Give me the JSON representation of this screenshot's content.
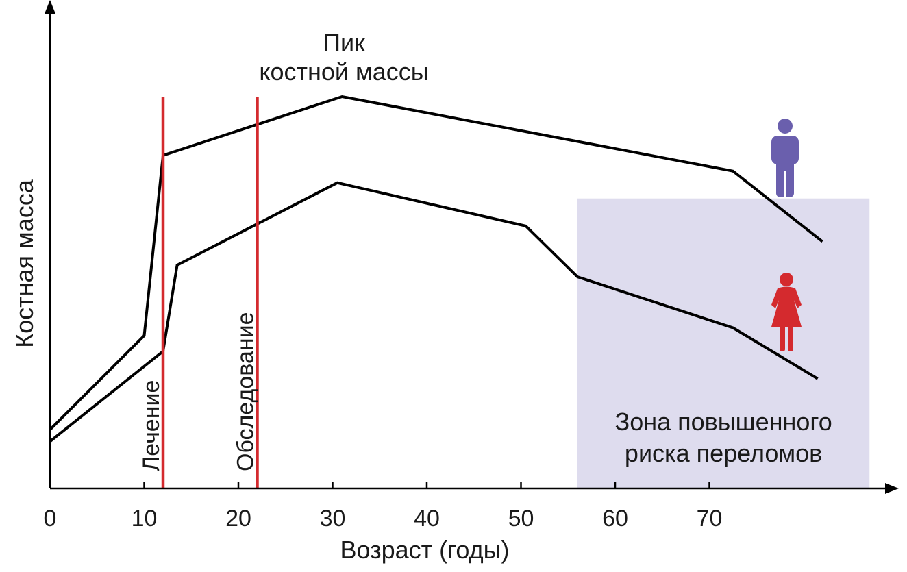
{
  "chart_data": {
    "type": "line",
    "xlabel": "Возраст (годы)",
    "ylabel": "Костная масса",
    "x_ticks": [
      0,
      10,
      20,
      30,
      40,
      50,
      60,
      70
    ],
    "xlim": [
      0,
      90
    ],
    "ylim": [
      0,
      10
    ],
    "series": [
      {
        "color": "#000000",
        "icon": "male-figure-icon",
        "icon_color": "#6a5fad",
        "points": [
          [
            0,
            1.5
          ],
          [
            10,
            3.9
          ],
          [
            12,
            8.5
          ],
          [
            31,
            10.0
          ],
          [
            72.5,
            8.1
          ],
          [
            82,
            6.3
          ]
        ]
      },
      {
        "color": "#000000",
        "icon": "female-figure-icon",
        "icon_color": "#d42a2e",
        "points": [
          [
            0,
            1.2
          ],
          [
            12,
            3.5
          ],
          [
            13.5,
            5.7
          ],
          [
            30.5,
            7.8
          ],
          [
            50.5,
            6.7
          ],
          [
            56,
            5.4
          ],
          [
            72.5,
            4.1
          ],
          [
            81.5,
            2.8
          ]
        ]
      }
    ],
    "vertical_markers": [
      {
        "x": 12,
        "label": "Лечение",
        "color": "#d42a2e"
      },
      {
        "x": 22,
        "label": "Обследование",
        "color": "#d42a2e"
      }
    ],
    "annotations": [
      {
        "text_lines": [
          "Пик",
          "костной массы"
        ]
      }
    ],
    "shaded_region": {
      "x_range": [
        56,
        87
      ],
      "y_range": [
        0,
        7.4
      ],
      "color": "#dedcee",
      "text_lines": [
        "Зона повышенного",
        "риска переломов"
      ]
    }
  }
}
